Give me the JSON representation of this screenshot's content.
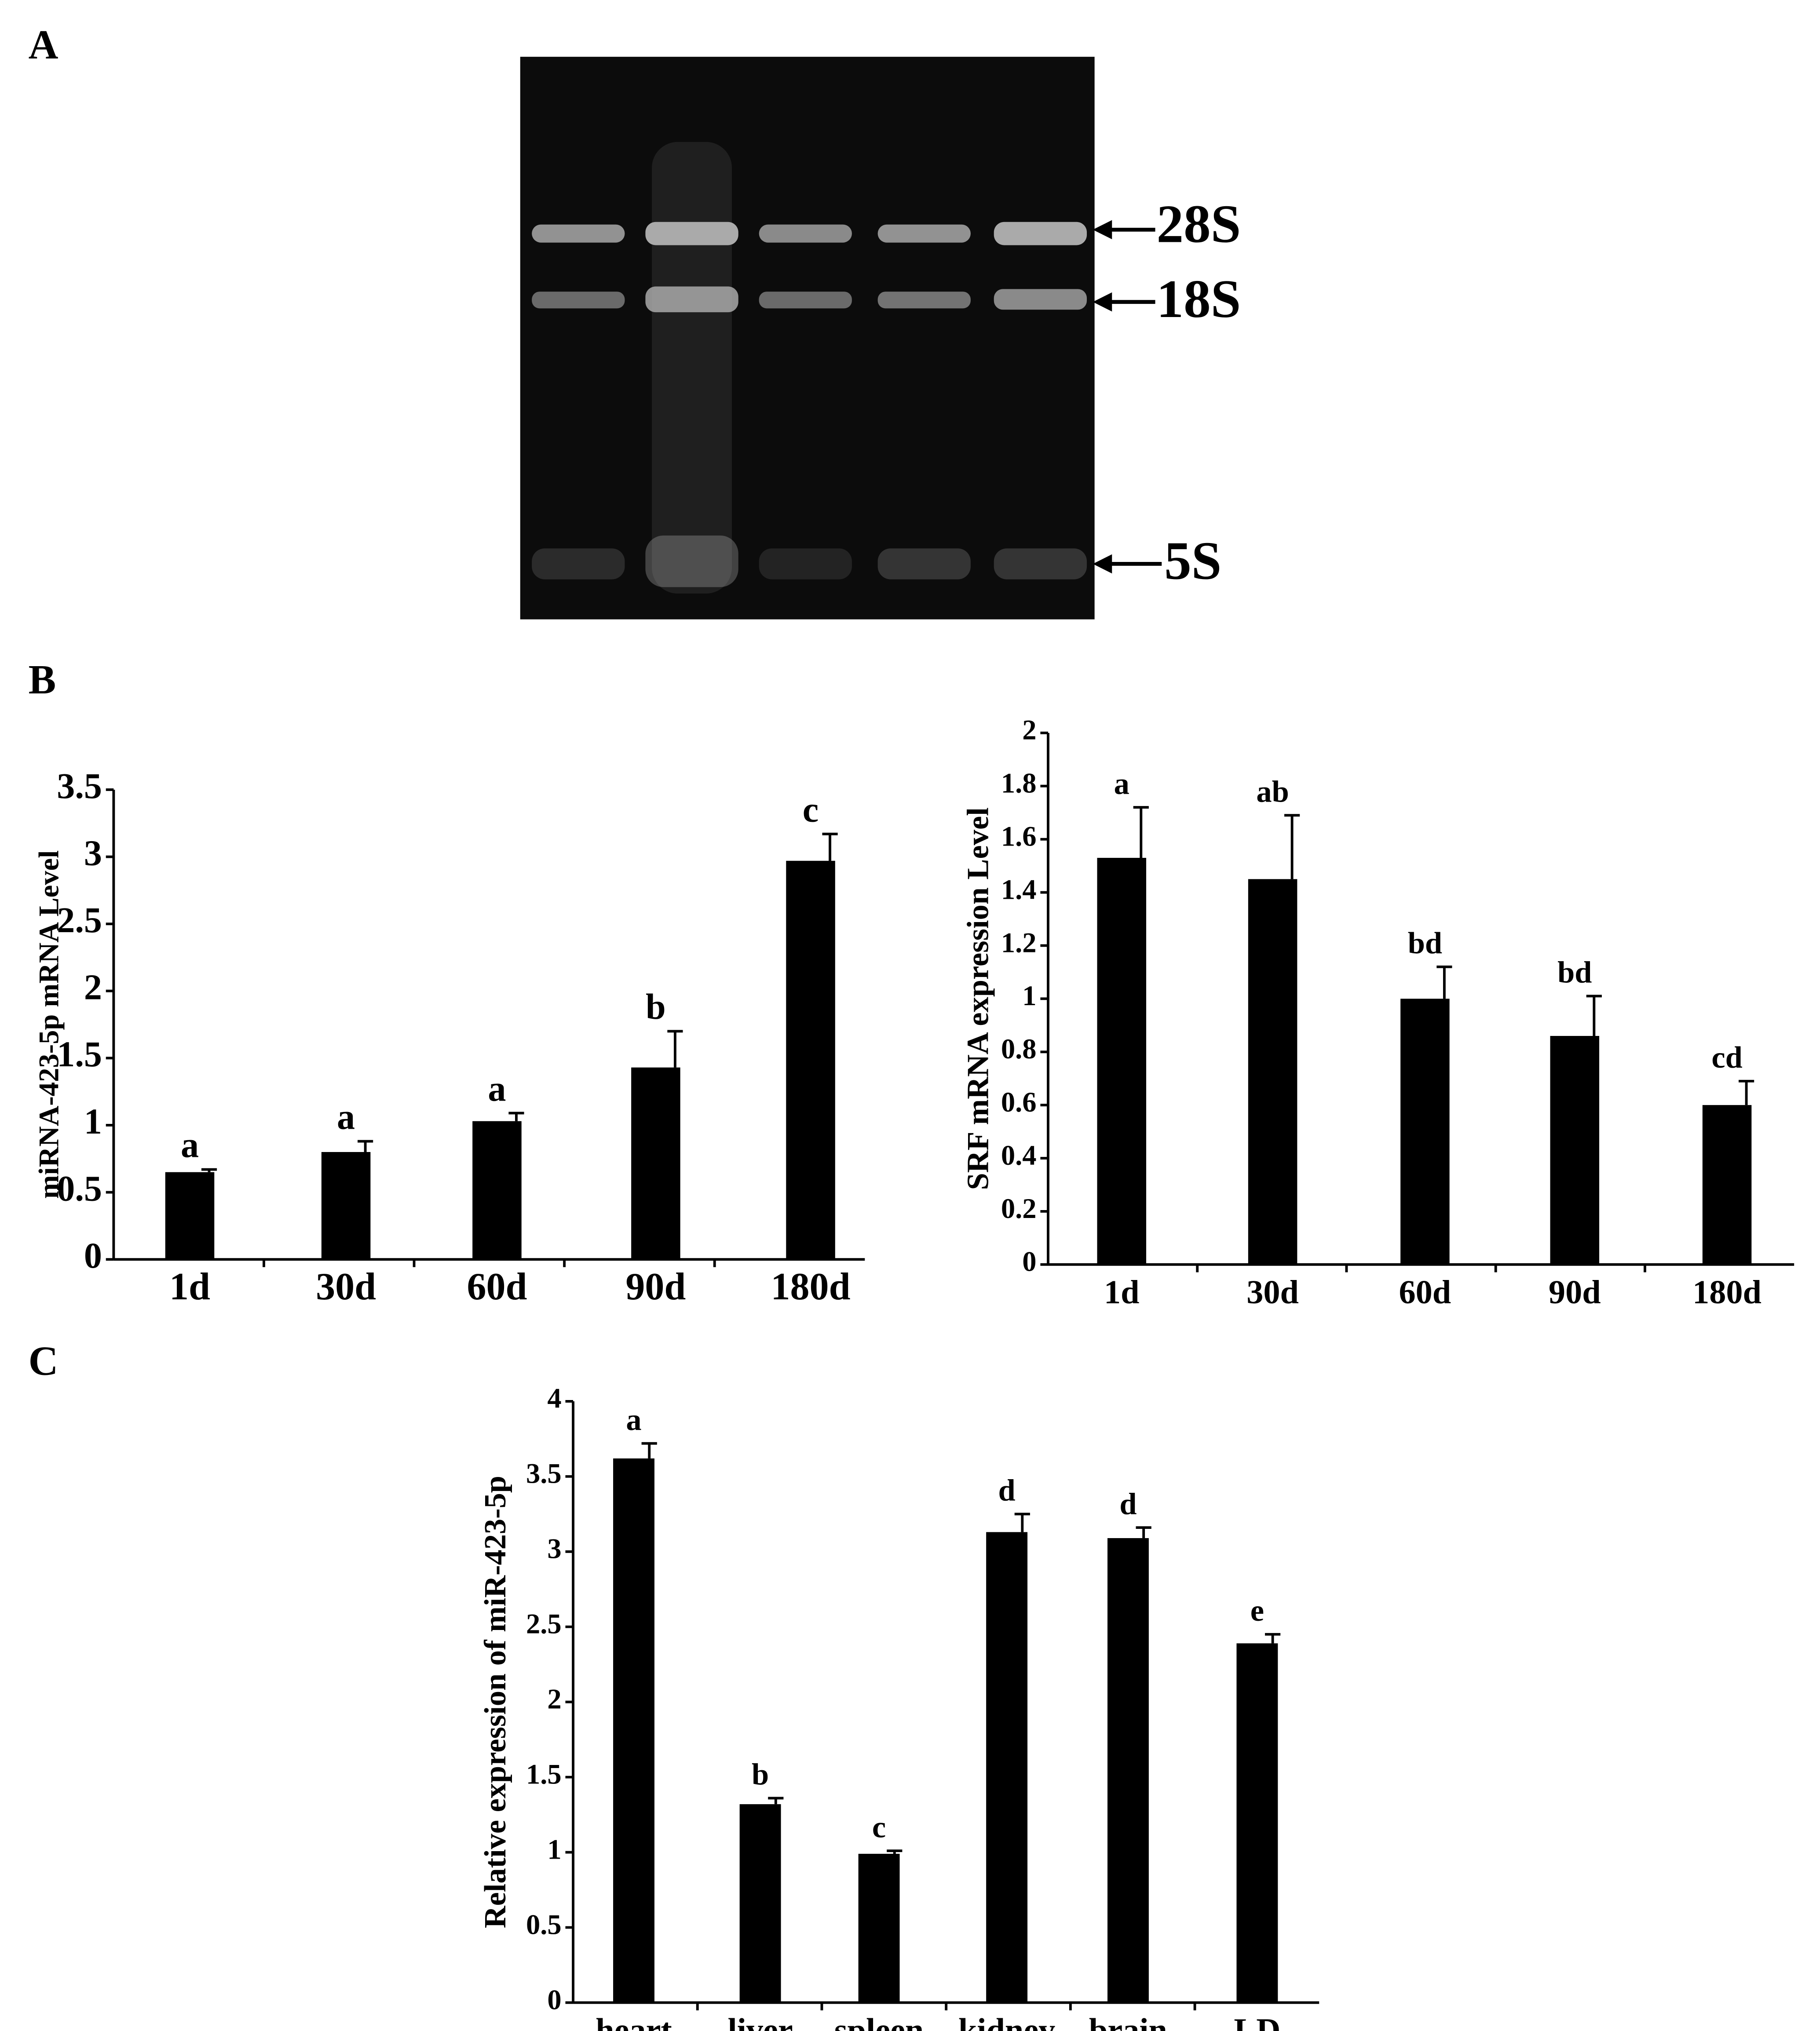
{
  "panels": [
    "A",
    "B",
    "C"
  ],
  "gel": {
    "labels": [
      "28S",
      "18S",
      "5S"
    ]
  },
  "chart_data": [
    {
      "type": "bar",
      "ylabel": "miRNA-423-5p mRNA Level",
      "categories": [
        "1d",
        "30d",
        "60d",
        "90d",
        "180d"
      ],
      "values": [
        0.65,
        0.8,
        1.03,
        1.43,
        2.97
      ],
      "errors": [
        0.02,
        0.08,
        0.06,
        0.27,
        0.2
      ],
      "annotations": [
        "a",
        "a",
        "a",
        "b",
        "c"
      ],
      "color": "#000000",
      "ylim": [
        0,
        3.5
      ],
      "yticks": [
        0,
        0.5,
        1,
        1.5,
        2,
        2.5,
        3,
        3.5
      ]
    },
    {
      "type": "bar",
      "ylabel": "SRF mRNA expression Level",
      "categories": [
        "1d",
        "30d",
        "60d",
        "90d",
        "180d"
      ],
      "values": [
        1.53,
        1.45,
        1.0,
        0.86,
        0.6
      ],
      "errors": [
        0.19,
        0.24,
        0.12,
        0.15,
        0.09
      ],
      "annotations": [
        "a",
        "ab",
        "bd",
        "bd",
        "cd"
      ],
      "color": "#000000",
      "ylim": [
        0,
        2
      ],
      "yticks": [
        0,
        0.2,
        0.4,
        0.6,
        0.8,
        1,
        1.2,
        1.4,
        1.6,
        1.8,
        2
      ]
    },
    {
      "type": "bar",
      "ylabel": "Relative expression of miR-423-5p",
      "categories": [
        "heart",
        "liver",
        "spleen",
        "kidney",
        "brain",
        "LD"
      ],
      "values": [
        3.62,
        1.32,
        0.99,
        3.13,
        3.09,
        2.39
      ],
      "errors": [
        0.1,
        0.04,
        0.02,
        0.12,
        0.07,
        0.06
      ],
      "annotations": [
        "a",
        "b",
        "c",
        "d",
        "d",
        "e"
      ],
      "color": "#000000",
      "ylim": [
        0,
        4
      ],
      "yticks": [
        0,
        0.5,
        1,
        1.5,
        2,
        2.5,
        3,
        3.5,
        4
      ]
    }
  ]
}
